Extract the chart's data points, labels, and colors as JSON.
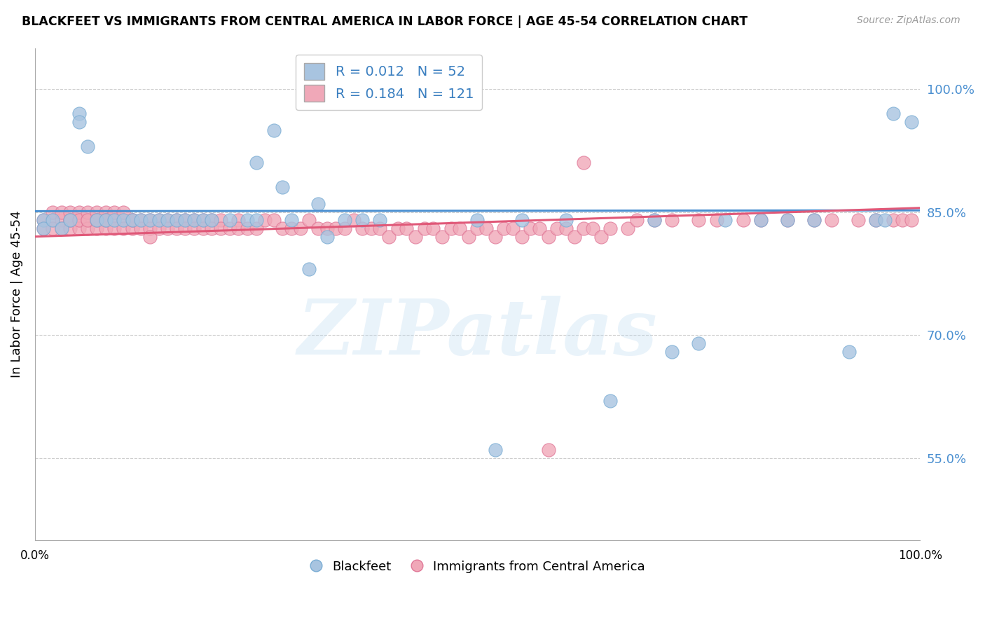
{
  "title": "BLACKFEET VS IMMIGRANTS FROM CENTRAL AMERICA IN LABOR FORCE | AGE 45-54 CORRELATION CHART",
  "source": "Source: ZipAtlas.com",
  "ylabel": "In Labor Force | Age 45-54",
  "xlim": [
    0.0,
    1.0
  ],
  "ylim": [
    0.45,
    1.05
  ],
  "yticks": [
    0.55,
    0.7,
    0.85,
    1.0
  ],
  "ytick_labels": [
    "55.0%",
    "70.0%",
    "85.0%",
    "100.0%"
  ],
  "blue_R": 0.012,
  "blue_N": 52,
  "pink_R": 0.184,
  "pink_N": 121,
  "blue_color": "#a8c4e0",
  "pink_color": "#f0a8b8",
  "blue_edge": "#7aadd4",
  "pink_edge": "#e07898",
  "blue_line_color": "#4a8fd0",
  "pink_line_color": "#e05878",
  "legend_label_blue": "Blackfeet",
  "legend_label_pink": "Immigrants from Central America",
  "watermark": "ZIPatlas",
  "blue_line_x0": 0.0,
  "blue_line_y0": 0.851,
  "blue_line_x1": 1.0,
  "blue_line_y1": 0.852,
  "pink_line_x0": 0.0,
  "pink_line_y0": 0.82,
  "pink_line_x1": 1.0,
  "pink_line_y1": 0.855,
  "blue_scatter_x": [
    0.01,
    0.01,
    0.02,
    0.03,
    0.04,
    0.05,
    0.05,
    0.06,
    0.07,
    0.08,
    0.09,
    0.1,
    0.11,
    0.12,
    0.13,
    0.14,
    0.15,
    0.16,
    0.17,
    0.18,
    0.19,
    0.2,
    0.22,
    0.24,
    0.25,
    0.27,
    0.29,
    0.31,
    0.33,
    0.35,
    0.37,
    0.39,
    0.25,
    0.28,
    0.32,
    0.5,
    0.52,
    0.55,
    0.6,
    0.65,
    0.7,
    0.72,
    0.75,
    0.78,
    0.82,
    0.85,
    0.88,
    0.92,
    0.95,
    0.96,
    0.97,
    0.99
  ],
  "blue_scatter_y": [
    0.84,
    0.83,
    0.84,
    0.83,
    0.84,
    0.97,
    0.96,
    0.93,
    0.84,
    0.84,
    0.84,
    0.84,
    0.84,
    0.84,
    0.84,
    0.84,
    0.84,
    0.84,
    0.84,
    0.84,
    0.84,
    0.84,
    0.84,
    0.84,
    0.84,
    0.95,
    0.84,
    0.78,
    0.82,
    0.84,
    0.84,
    0.84,
    0.91,
    0.88,
    0.86,
    0.84,
    0.56,
    0.84,
    0.84,
    0.62,
    0.84,
    0.68,
    0.69,
    0.84,
    0.84,
    0.84,
    0.84,
    0.68,
    0.84,
    0.84,
    0.97,
    0.96
  ],
  "pink_scatter_x": [
    0.01,
    0.01,
    0.02,
    0.02,
    0.02,
    0.03,
    0.03,
    0.03,
    0.04,
    0.04,
    0.04,
    0.04,
    0.05,
    0.05,
    0.05,
    0.05,
    0.06,
    0.06,
    0.06,
    0.06,
    0.07,
    0.07,
    0.07,
    0.07,
    0.08,
    0.08,
    0.08,
    0.08,
    0.09,
    0.09,
    0.09,
    0.1,
    0.1,
    0.1,
    0.11,
    0.11,
    0.11,
    0.12,
    0.12,
    0.13,
    0.13,
    0.13,
    0.14,
    0.14,
    0.15,
    0.15,
    0.16,
    0.16,
    0.17,
    0.17,
    0.18,
    0.18,
    0.19,
    0.19,
    0.2,
    0.2,
    0.21,
    0.21,
    0.22,
    0.23,
    0.23,
    0.24,
    0.25,
    0.26,
    0.27,
    0.28,
    0.29,
    0.3,
    0.31,
    0.32,
    0.33,
    0.34,
    0.35,
    0.36,
    0.37,
    0.38,
    0.39,
    0.4,
    0.41,
    0.42,
    0.43,
    0.44,
    0.45,
    0.46,
    0.47,
    0.48,
    0.49,
    0.5,
    0.51,
    0.52,
    0.53,
    0.54,
    0.55,
    0.56,
    0.57,
    0.58,
    0.59,
    0.6,
    0.61,
    0.62,
    0.63,
    0.64,
    0.65,
    0.67,
    0.68,
    0.7,
    0.72,
    0.75,
    0.77,
    0.8,
    0.82,
    0.85,
    0.88,
    0.9,
    0.93,
    0.95,
    0.97,
    0.98,
    0.99,
    0.58,
    0.62
  ],
  "pink_scatter_y": [
    0.84,
    0.83,
    0.84,
    0.83,
    0.85,
    0.84,
    0.83,
    0.85,
    0.84,
    0.83,
    0.85,
    0.84,
    0.84,
    0.83,
    0.85,
    0.84,
    0.84,
    0.83,
    0.85,
    0.84,
    0.84,
    0.83,
    0.85,
    0.84,
    0.84,
    0.83,
    0.85,
    0.84,
    0.84,
    0.83,
    0.85,
    0.84,
    0.83,
    0.85,
    0.84,
    0.83,
    0.84,
    0.84,
    0.83,
    0.84,
    0.83,
    0.82,
    0.84,
    0.83,
    0.84,
    0.83,
    0.84,
    0.83,
    0.84,
    0.83,
    0.84,
    0.83,
    0.84,
    0.83,
    0.84,
    0.83,
    0.84,
    0.83,
    0.83,
    0.84,
    0.83,
    0.83,
    0.83,
    0.84,
    0.84,
    0.83,
    0.83,
    0.83,
    0.84,
    0.83,
    0.83,
    0.83,
    0.83,
    0.84,
    0.83,
    0.83,
    0.83,
    0.82,
    0.83,
    0.83,
    0.82,
    0.83,
    0.83,
    0.82,
    0.83,
    0.83,
    0.82,
    0.83,
    0.83,
    0.82,
    0.83,
    0.83,
    0.82,
    0.83,
    0.83,
    0.82,
    0.83,
    0.83,
    0.82,
    0.83,
    0.83,
    0.82,
    0.83,
    0.83,
    0.84,
    0.84,
    0.84,
    0.84,
    0.84,
    0.84,
    0.84,
    0.84,
    0.84,
    0.84,
    0.84,
    0.84,
    0.84,
    0.84,
    0.84,
    0.56,
    0.91
  ]
}
